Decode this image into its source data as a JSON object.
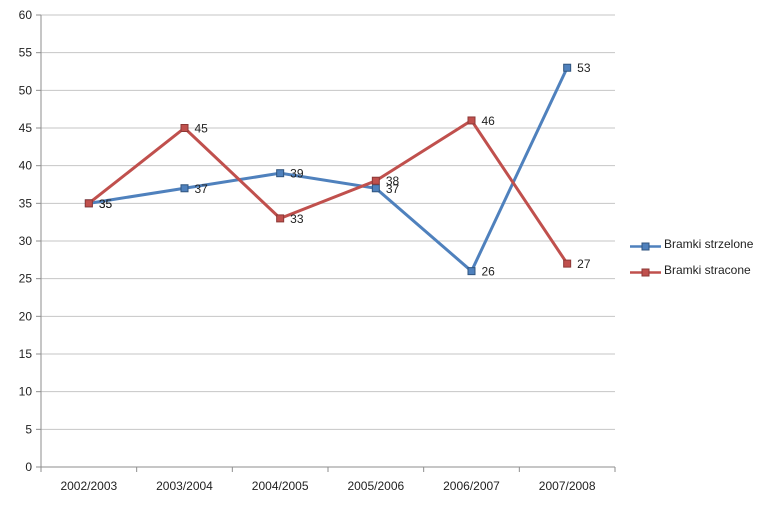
{
  "chart_data": {
    "type": "line",
    "title": "",
    "categories": [
      "2002/2003",
      "2003/2004",
      "2004/2005",
      "2005/2006",
      "2006/2007",
      "2007/2008"
    ],
    "series": [
      {
        "name": "Bramki strzelone",
        "color": "#4F81BD",
        "marker_border": "#30557F",
        "values": [
          35,
          37,
          39,
          37,
          26,
          53
        ]
      },
      {
        "name": "Bramki stracone",
        "color": "#C0504D",
        "marker_border": "#8C3836",
        "values": [
          35,
          45,
          33,
          38,
          46,
          27
        ]
      }
    ],
    "ylim": [
      0,
      60
    ],
    "ytick_step": 5,
    "yticks": [
      0,
      5,
      10,
      15,
      20,
      25,
      30,
      35,
      40,
      45,
      50,
      55,
      60
    ],
    "grid": true,
    "data_labels": true,
    "legend_position": "right",
    "marker": "square"
  },
  "colors": {
    "background": "#FFFFFF",
    "gridline": "#C6C6C6",
    "axis": "#8E8E8E",
    "text": "#1F1F1F"
  }
}
